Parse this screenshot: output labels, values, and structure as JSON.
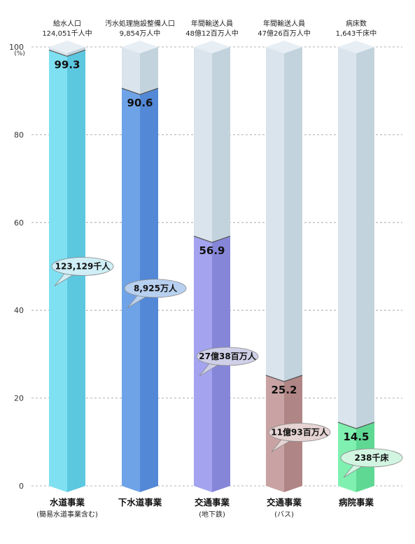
{
  "chart_data": {
    "type": "bar",
    "ylim": [
      0,
      100
    ],
    "yticks": [
      0,
      20,
      40,
      60,
      80,
      100
    ],
    "yunit": "(%)",
    "grid": true,
    "categories": [
      "水道事業",
      "下水道事業",
      "交通事業",
      "交通事業",
      "病院事業"
    ],
    "category_notes": [
      "(簡易水道事業含む)",
      "",
      "(地下鉄)",
      "(バス)",
      ""
    ],
    "headers": [
      {
        "line1": "給水人口",
        "line2": "124,051千人中"
      },
      {
        "line1": "汚水処理施設整備人口",
        "line2": "9,854万人中"
      },
      {
        "line1": "年間輸送人員",
        "line2": "48億12百万人中"
      },
      {
        "line1": "年間輸送人員",
        "line2": "47億26百万人中"
      },
      {
        "line1": "病床数",
        "line2": "1,643千床中"
      }
    ],
    "values": [
      99.3,
      90.6,
      56.9,
      25.2,
      14.5
    ],
    "value_labels": [
      "99.3",
      "90.6",
      "56.9",
      "25.2",
      "14.5"
    ],
    "annotations": [
      "123,129千人",
      "8,925万人",
      "27億38百万人",
      "11億93百万人",
      "238千床"
    ],
    "annotation_levels": [
      50,
      45,
      29.5,
      12.2,
      6.4
    ],
    "colors": {
      "filled": [
        "#7fe0f2",
        "#6fa3e8",
        "#a3a3ef",
        "#c9a3a3",
        "#7ff0b0"
      ],
      "filled_side": [
        "#5cc8e0",
        "#5288d6",
        "#8686d9",
        "#b08585",
        "#5fd894"
      ],
      "filled_top": [
        "#b7f1fb",
        "#a9c8f3",
        "#cdcdf7",
        "#e0c9c9",
        "#b5f7d3"
      ],
      "bubble": [
        "#cfeef6",
        "#b8d0f0",
        "#cfcfe8",
        "#e6d3d3",
        "#d2f5e2"
      ],
      "empty": "#d9e4ec",
      "empty_side": "#c3d3de",
      "empty_top": "#e8eff4"
    }
  }
}
